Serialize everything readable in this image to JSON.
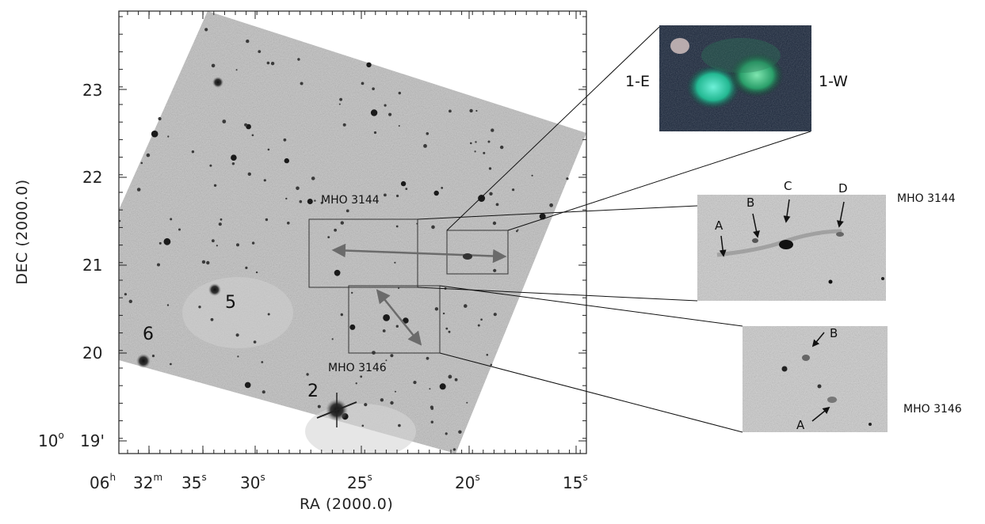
{
  "axes": {
    "ra_ticks": [
      "06",
      "32",
      "35",
      "30",
      "25",
      "20",
      "15"
    ],
    "ra_units": {
      "hours": "h",
      "minutes": "m",
      "seconds": "s"
    },
    "dec_ticks": [
      "23",
      "22",
      "21",
      "20",
      "10",
      "19'"
    ],
    "dec_degree_unit": "o",
    "xlabel": "RA (2000.0)",
    "ylabel": "DEC (2000.0)"
  },
  "main_image": {
    "source_numbers": [
      "6",
      "5",
      "2"
    ],
    "region_labels": {
      "upper": "MHO 3144",
      "lower": "MHO 3146"
    }
  },
  "color_inset": {
    "left_label": "1-E",
    "right_label": "1-W"
  },
  "inset_mho3144": {
    "title": "MHO 3144",
    "knots": [
      "A",
      "B",
      "C",
      "D"
    ]
  },
  "inset_mho3146": {
    "title": "MHO 3146",
    "knots": [
      "B",
      "A"
    ]
  },
  "colors": {
    "frame": "#222222",
    "arrow": "#6b6b6b",
    "field": "#bdbdbd",
    "inset_bg": "#c9c9c9"
  }
}
